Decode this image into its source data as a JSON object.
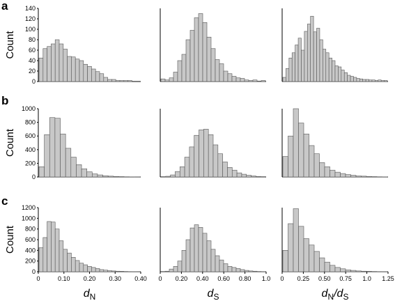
{
  "chart_data": {
    "type": "bar",
    "rows": [
      {
        "label": "a",
        "ylabel": "Count",
        "yticks": [
          "0",
          "20",
          "40",
          "60",
          "80",
          "100",
          "120",
          "140"
        ],
        "ylim": [
          0,
          140
        ],
        "panels": [
          {
            "values": [
              45,
              63,
              67,
              72,
              80,
              72,
              62,
              48,
              47,
              43,
              40,
              33,
              29,
              24,
              19,
              15,
              8,
              4,
              4,
              2,
              2,
              2,
              2,
              0,
              0
            ]
          },
          {
            "values": [
              5,
              3,
              7,
              18,
              40,
              52,
              80,
              98,
              122,
              130,
              113,
              85,
              63,
              42,
              34,
              20,
              15,
              10,
              7,
              6,
              3,
              2,
              3,
              1,
              2
            ]
          },
          {
            "values": [
              8,
              25,
              45,
              55,
              70,
              83,
              60,
              96,
              110,
              125,
              95,
              102,
              80,
              62,
              55,
              45,
              40,
              30,
              28,
              22,
              17,
              12,
              10,
              8,
              6,
              5,
              4,
              4,
              3,
              3,
              2,
              3,
              2,
              2
            ]
          }
        ]
      },
      {
        "label": "b",
        "ylabel": "Count",
        "yticks": [
          "0",
          "200",
          "400",
          "600",
          "800",
          "1000"
        ],
        "ylim": [
          0,
          1000
        ],
        "panels": [
          {
            "values": [
              150,
              620,
              870,
              860,
              630,
              420,
              290,
              180,
              120,
              75,
              45,
              30,
              18,
              12,
              8,
              5,
              3,
              2,
              1
            ]
          },
          {
            "values": [
              5,
              10,
              30,
              80,
              150,
              290,
              440,
              610,
              690,
              700,
              620,
              470,
              340,
              220,
              140,
              100,
              60,
              40,
              25,
              15,
              8,
              5
            ]
          },
          {
            "values": [
              300,
              600,
              1000,
              790,
              630,
              460,
              340,
              210,
              150,
              100,
              70,
              50,
              35,
              25,
              15,
              12,
              8,
              5,
              3,
              2
            ]
          }
        ]
      },
      {
        "label": "c",
        "ylabel": "Count",
        "yticks": [
          "0",
          "200",
          "400",
          "600",
          "800",
          "1000",
          "1200"
        ],
        "ylim": [
          0,
          1200
        ],
        "panels": [
          {
            "values": [
              450,
              640,
              940,
              930,
              800,
              580,
              420,
              350,
              270,
              210,
              160,
              130,
              100,
              80,
              60,
              40,
              30,
              20,
              15,
              10,
              8,
              5,
              3,
              2,
              1
            ]
          },
          {
            "values": [
              5,
              10,
              50,
              100,
              200,
              400,
              600,
              820,
              880,
              830,
              720,
              580,
              420,
              300,
              220,
              150,
              100,
              80,
              60,
              40,
              25,
              15,
              10,
              5,
              3
            ]
          },
          {
            "values": [
              400,
              900,
              1180,
              850,
              620,
              500,
              380,
              260,
              180,
              120,
              80,
              55,
              35,
              25,
              15,
              10,
              8,
              5,
              3,
              2
            ]
          }
        ]
      }
    ],
    "x_axes": [
      {
        "label": "d",
        "sub": "N",
        "ticks": [
          "0",
          "0.10",
          "0.20",
          "0.30",
          "0.40"
        ]
      },
      {
        "label": "d",
        "sub": "S",
        "ticks": [
          "0",
          "0.20",
          "0.40",
          "0.60",
          "0.80",
          "1.0"
        ]
      },
      {
        "label": "d",
        "sub": "N",
        "label2": "/d",
        "sub2": "S",
        "ticks": [
          "0",
          "0.25",
          "0.50",
          "0.75",
          "1.0",
          "1.25"
        ]
      }
    ],
    "colors": {
      "bar_fill": "#c8c8c8",
      "bar_stroke": "#555555"
    }
  }
}
